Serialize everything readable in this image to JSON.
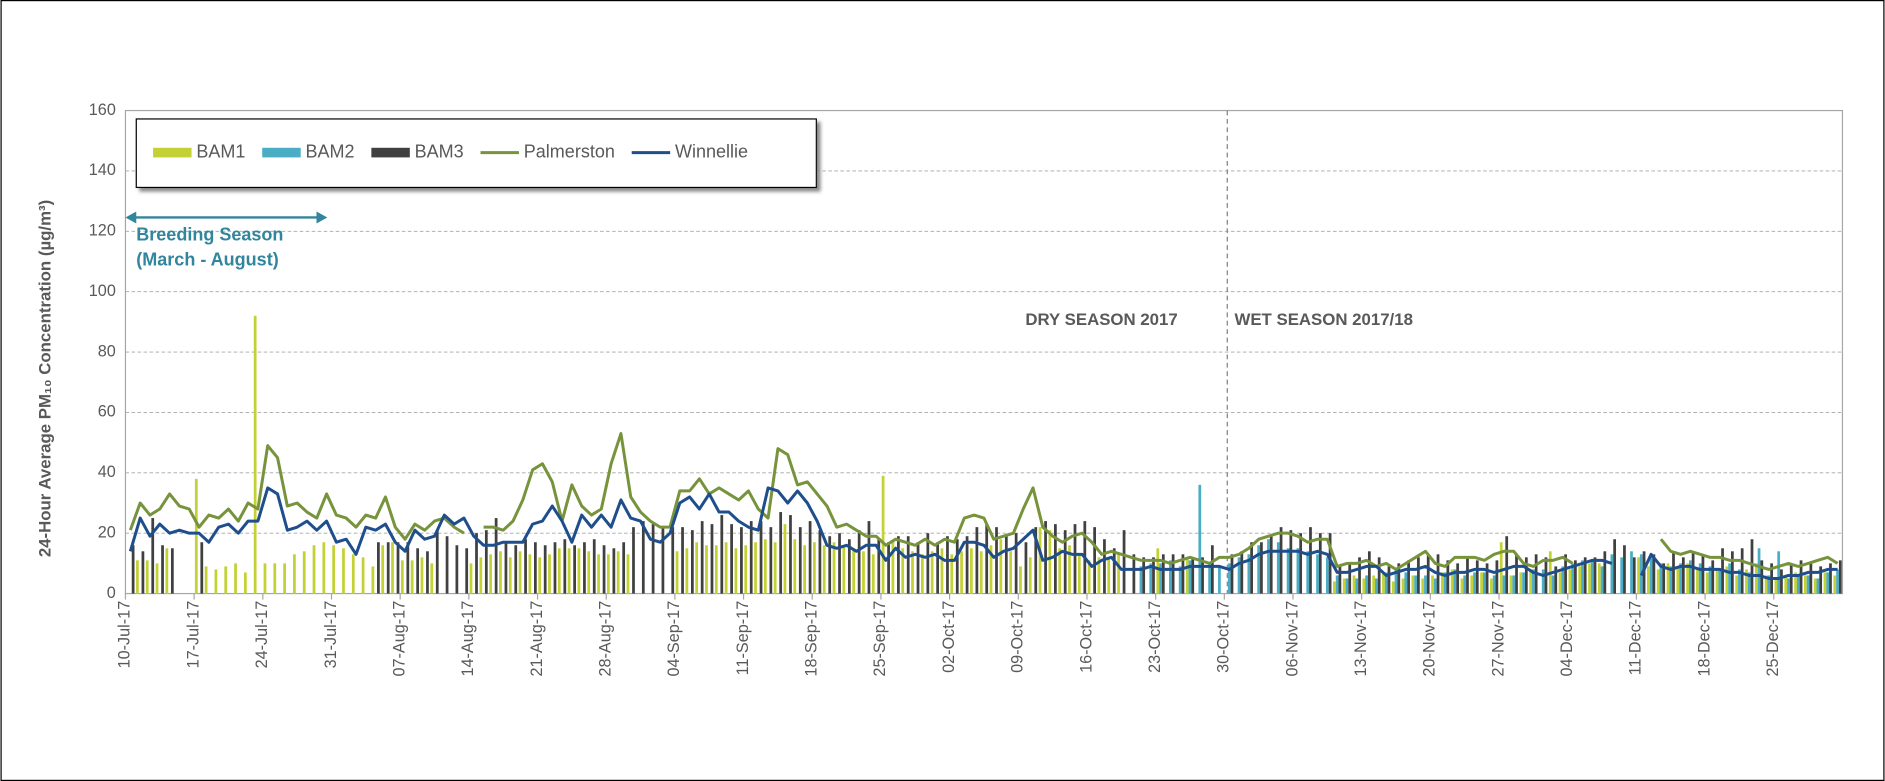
{
  "chart_data": {
    "type": "combo",
    "y_label": "24-Hour Average PM₁₀ Concentration (µg/m³)",
    "annotations": [
      "Breeding Season",
      "(March - August)",
      "DRY SEASON 2017",
      "WET SEASON 2017/18"
    ],
    "categories": [
      "10-Jul-17",
      null,
      null,
      null,
      null,
      null,
      null,
      "17-Jul-17",
      null,
      null,
      null,
      null,
      null,
      null,
      "24-Jul-17",
      null,
      null,
      null,
      null,
      null,
      null,
      "31-Jul-17",
      null,
      null,
      null,
      null,
      null,
      null,
      "07-Aug-17",
      null,
      null,
      null,
      null,
      null,
      null,
      "14-Aug-17",
      null,
      null,
      null,
      null,
      null,
      null,
      "21-Aug-17",
      null,
      null,
      null,
      null,
      null,
      null,
      "28-Aug-17",
      null,
      null,
      null,
      null,
      null,
      null,
      "04-Sep-17",
      null,
      null,
      null,
      null,
      null,
      null,
      "11-Sep-17",
      null,
      null,
      null,
      null,
      null,
      null,
      "18-Sep-17",
      null,
      null,
      null,
      null,
      null,
      null,
      "25-Sep-17",
      null,
      null,
      null,
      null,
      null,
      null,
      "02-Oct-17",
      null,
      null,
      null,
      null,
      null,
      null,
      "09-Oct-17",
      null,
      null,
      null,
      null,
      null,
      null,
      "16-Oct-17",
      null,
      null,
      null,
      null,
      null,
      null,
      "23-Oct-17",
      null,
      null,
      null,
      null,
      null,
      null,
      "30-Oct-17",
      null,
      null,
      null,
      null,
      null,
      null,
      "06-Nov-17",
      null,
      null,
      null,
      null,
      null,
      null,
      "13-Nov-17",
      null,
      null,
      null,
      null,
      null,
      null,
      "20-Nov-17",
      null,
      null,
      null,
      null,
      null,
      null,
      "27-Nov-17",
      null,
      null,
      null,
      null,
      null,
      null,
      "04-Dec-17",
      null,
      null,
      null,
      null,
      null,
      null,
      "11-Dec-17",
      null,
      null,
      null,
      null,
      null,
      null,
      "18-Dec-17",
      null,
      null,
      null,
      null,
      null,
      null,
      "25-Dec-17",
      null,
      null,
      null,
      null,
      null,
      null
    ],
    "series": [
      {
        "name": "BAM1",
        "type": "bar",
        "color": "#c3d135",
        "values": [
          null,
          11,
          11,
          10,
          15,
          null,
          null,
          38,
          9,
          8,
          9,
          10,
          7,
          92,
          10,
          10,
          10,
          13,
          14,
          16,
          17,
          16,
          15,
          13,
          12,
          9,
          16,
          17,
          11,
          11,
          12,
          10,
          null,
          null,
          null,
          10,
          12,
          13,
          14,
          12,
          14,
          13,
          12,
          13,
          15,
          15,
          15,
          14,
          13,
          13,
          14,
          13,
          null,
          null,
          null,
          null,
          14,
          15,
          17,
          16,
          16,
          17,
          15,
          16,
          17,
          18,
          17,
          23,
          18,
          16,
          17,
          16,
          17,
          16,
          15,
          14,
          13,
          39,
          17,
          15,
          14,
          13,
          14,
          15,
          13,
          14,
          15,
          14,
          16,
          18,
          14,
          9,
          12,
          22,
          21,
          15,
          16,
          13,
          11,
          12,
          12,
          13,
          null,
          null,
          null,
          15,
          null,
          null,
          12,
          null,
          null,
          null,
          null,
          null,
          null,
          null,
          null,
          null,
          null,
          null,
          null,
          null,
          null,
          4,
          5,
          6,
          5,
          6,
          7,
          4,
          5,
          6,
          5,
          6,
          7,
          8,
          5,
          6,
          7,
          5,
          17,
          6,
          7,
          8,
          null,
          14,
          7,
          8,
          9,
          10,
          10,
          null,
          null,
          null,
          12,
          9,
          8,
          10,
          9,
          10,
          8,
          7,
          8,
          9,
          6,
          8,
          10,
          6,
          5,
          6,
          7,
          6,
          5,
          7,
          6
        ]
      },
      {
        "name": "BAM2",
        "type": "bar",
        "color": "#4bacc6",
        "values": [
          null,
          null,
          null,
          null,
          null,
          null,
          null,
          null,
          null,
          null,
          null,
          null,
          null,
          null,
          null,
          null,
          null,
          null,
          null,
          null,
          null,
          null,
          null,
          null,
          null,
          null,
          null,
          null,
          null,
          null,
          null,
          null,
          null,
          null,
          null,
          null,
          null,
          null,
          null,
          null,
          null,
          null,
          null,
          null,
          null,
          null,
          null,
          null,
          null,
          null,
          null,
          null,
          null,
          null,
          null,
          null,
          null,
          null,
          null,
          null,
          null,
          null,
          null,
          null,
          null,
          null,
          null,
          null,
          null,
          null,
          null,
          null,
          null,
          null,
          null,
          null,
          null,
          null,
          null,
          null,
          null,
          null,
          null,
          null,
          null,
          null,
          null,
          null,
          null,
          null,
          null,
          null,
          null,
          null,
          null,
          null,
          null,
          null,
          null,
          null,
          null,
          null,
          null,
          9,
          10,
          10,
          11,
          9,
          11,
          36,
          10,
          9,
          10,
          12,
          13,
          16,
          18,
          17,
          15,
          15,
          14,
          13,
          12,
          6,
          5,
          5,
          6,
          5,
          7,
          8,
          7,
          6,
          6,
          5,
          7,
          8,
          6,
          7,
          7,
          6,
          6,
          6,
          7,
          8,
          8,
          6,
          9,
          10,
          11,
          11,
          9,
          13,
          12,
          14,
          13,
          13,
          10,
          9,
          10,
          11,
          10,
          9,
          8,
          10,
          8,
          7,
          15,
          6,
          14,
          5,
          6,
          6,
          5,
          7,
          8
        ]
      },
      {
        "name": "BAM3",
        "type": "bar",
        "color": "#404040",
        "values": [
          16,
          14,
          25,
          16,
          15,
          null,
          null,
          17,
          null,
          null,
          null,
          null,
          null,
          null,
          null,
          null,
          null,
          null,
          null,
          null,
          null,
          null,
          null,
          null,
          null,
          17,
          17,
          17,
          17,
          15,
          14,
          21,
          19,
          16,
          15,
          20,
          21,
          25,
          17,
          16,
          18,
          17,
          16,
          17,
          18,
          16,
          17,
          18,
          16,
          15,
          17,
          22,
          24,
          23,
          22,
          22,
          22,
          21,
          24,
          23,
          26,
          23,
          22,
          24,
          24,
          22,
          27,
          26,
          22,
          24,
          21,
          19,
          20,
          18,
          21,
          24,
          18,
          17,
          19,
          19,
          17,
          20,
          17,
          19,
          18,
          19,
          22,
          23,
          22,
          19,
          20,
          17,
          22,
          24,
          23,
          21,
          23,
          24,
          22,
          18,
          15,
          21,
          13,
          12,
          12,
          13,
          13,
          13,
          12,
          12,
          16,
          null,
          13,
          14,
          17,
          17,
          19,
          22,
          21,
          20,
          22,
          20,
          20,
          9,
          10,
          12,
          14,
          12,
          9,
          10,
          11,
          12,
          13,
          13,
          11,
          10,
          12,
          11,
          10,
          11,
          19,
          13,
          12,
          13,
          12,
          9,
          13,
          11,
          12,
          12,
          14,
          18,
          16,
          12,
          14,
          13,
          10,
          14,
          12,
          14,
          13,
          11,
          15,
          14,
          15,
          18,
          11,
          10,
          8,
          10,
          11,
          10,
          9,
          10,
          11
        ]
      },
      {
        "name": "Palmerston",
        "type": "line",
        "color": "#77933c",
        "values": [
          21,
          30,
          26,
          28,
          33,
          29,
          28,
          22,
          26,
          25,
          28,
          24,
          30,
          28,
          49,
          45,
          29,
          30,
          27,
          25,
          33,
          26,
          25,
          22,
          26,
          25,
          32,
          22,
          18,
          23,
          21,
          24,
          25,
          22,
          20,
          null,
          22,
          22,
          21,
          24,
          31,
          41,
          43,
          37,
          24,
          36,
          29,
          26,
          28,
          43,
          53,
          32,
          27,
          24,
          22,
          22,
          34,
          34,
          38,
          33,
          35,
          33,
          31,
          34,
          28,
          25,
          48,
          46,
          36,
          37,
          33,
          29,
          22,
          23,
          21,
          19,
          19,
          16,
          18,
          17,
          16,
          18,
          16,
          18,
          17,
          25,
          26,
          25,
          18,
          19,
          20,
          28,
          35,
          22,
          19,
          17,
          19,
          20,
          17,
          13,
          14,
          13,
          12,
          11,
          11,
          11,
          10,
          11,
          12,
          11,
          10,
          12,
          12,
          13,
          15,
          18,
          19,
          20,
          20,
          19,
          17,
          18,
          18,
          9,
          10,
          10,
          11,
          9,
          10,
          8,
          10,
          12,
          14,
          10,
          9,
          12,
          12,
          12,
          11,
          13,
          14,
          14,
          10,
          9,
          11,
          11,
          12,
          10,
          null,
          null,
          null,
          null,
          null,
          null,
          null,
          null,
          18,
          14,
          13,
          14,
          13,
          12,
          12,
          11,
          11,
          10,
          9,
          8,
          9,
          10,
          9,
          10,
          11,
          12,
          10
        ]
      },
      {
        "name": "Winnellie",
        "type": "line",
        "color": "#1f4e8c",
        "values": [
          14,
          25,
          19,
          23,
          20,
          21,
          20,
          20,
          17,
          22,
          23,
          20,
          24,
          24,
          35,
          33,
          21,
          22,
          24,
          21,
          24,
          17,
          18,
          13,
          22,
          21,
          23,
          17,
          14,
          21,
          18,
          19,
          26,
          23,
          25,
          19,
          16,
          16,
          17,
          17,
          17,
          23,
          24,
          29,
          24,
          17,
          26,
          22,
          26,
          22,
          31,
          25,
          24,
          18,
          17,
          20,
          30,
          32,
          28,
          33,
          27,
          27,
          24,
          22,
          21,
          35,
          34,
          30,
          34,
          30,
          24,
          16,
          15,
          16,
          14,
          16,
          16,
          11,
          15,
          12,
          13,
          12,
          13,
          11,
          11,
          17,
          17,
          16,
          12,
          14,
          15,
          18,
          21,
          11,
          12,
          14,
          13,
          13,
          9,
          11,
          12,
          8,
          8,
          8,
          9,
          8,
          8,
          8,
          9,
          9,
          9,
          9,
          8,
          10,
          11,
          13,
          14,
          14,
          14,
          14,
          13,
          14,
          13,
          7,
          7,
          8,
          9,
          9,
          6,
          7,
          8,
          8,
          9,
          7,
          6,
          7,
          7,
          8,
          8,
          7,
          8,
          9,
          9,
          7,
          6,
          7,
          8,
          9,
          10,
          11,
          11,
          10,
          null,
          null,
          6,
          13,
          9,
          8,
          9,
          9,
          8,
          8,
          8,
          7,
          7,
          6,
          6,
          5,
          5,
          6,
          6,
          7,
          7,
          8,
          8
        ]
      }
    ],
    "ylim": [
      0,
      160
    ],
    "yticks": [
      0,
      20,
      40,
      60,
      80,
      100,
      120,
      140,
      160
    ],
    "grid": true,
    "legend": "top-left"
  }
}
